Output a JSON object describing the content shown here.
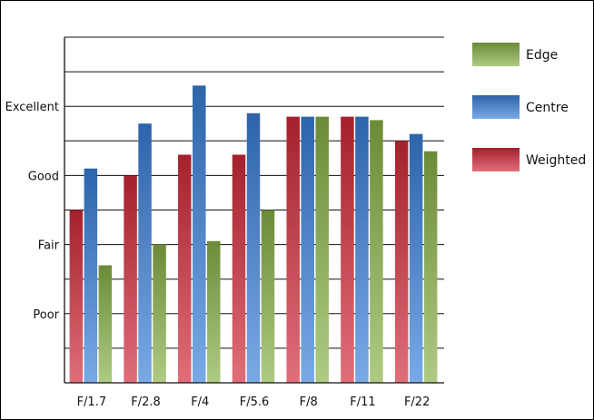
{
  "chart_data": {
    "type": "bar",
    "categories": [
      "F/1.7",
      "F/2.8",
      "F/4",
      "F/5.6",
      "F/8",
      "F/11",
      "F/22"
    ],
    "series": [
      {
        "name": "Weighted",
        "color": "#d22a3a",
        "values": [
          2.5,
          3.0,
          3.3,
          3.3,
          3.85,
          3.85,
          3.5
        ]
      },
      {
        "name": "Centre",
        "color": "#3a80da",
        "values": [
          3.1,
          3.75,
          4.3,
          3.9,
          3.85,
          3.85,
          3.6
        ]
      },
      {
        "name": "Edge",
        "color": "#8ab248",
        "values": [
          1.7,
          2.0,
          2.05,
          2.5,
          3.85,
          3.8,
          3.35
        ]
      }
    ],
    "yticks": [
      {
        "value": 1,
        "label": "Poor"
      },
      {
        "value": 2,
        "label": "Fair"
      },
      {
        "value": 3,
        "label": "Good"
      },
      {
        "value": 4,
        "label": "Excellent"
      }
    ],
    "ylim": [
      0,
      5
    ],
    "grid_step": 0.5,
    "grid": true,
    "legend_position": "right",
    "legend_order": [
      "Edge",
      "Centre",
      "Weighted"
    ]
  }
}
